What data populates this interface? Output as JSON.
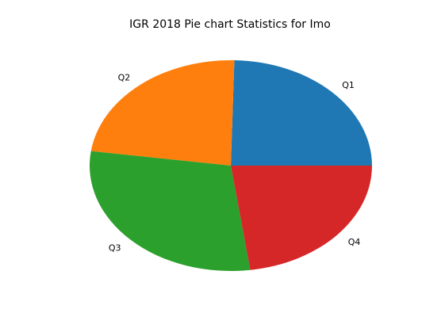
{
  "chart_data": {
    "type": "pie",
    "title": "IGR 2018 Pie chart Statistics for Imo",
    "slices": [
      {
        "label": "Q1",
        "value": 24.6,
        "color": "#1f77b4"
      },
      {
        "label": "Q2",
        "value": 23.2,
        "color": "#ff7f0e"
      },
      {
        "label": "Q3",
        "value": 29.4,
        "color": "#2ca02c"
      },
      {
        "label": "Q4",
        "value": 22.8,
        "color": "#d62728"
      }
    ],
    "start_angle": 0,
    "direction": "counterclockwise",
    "legend": "none"
  }
}
